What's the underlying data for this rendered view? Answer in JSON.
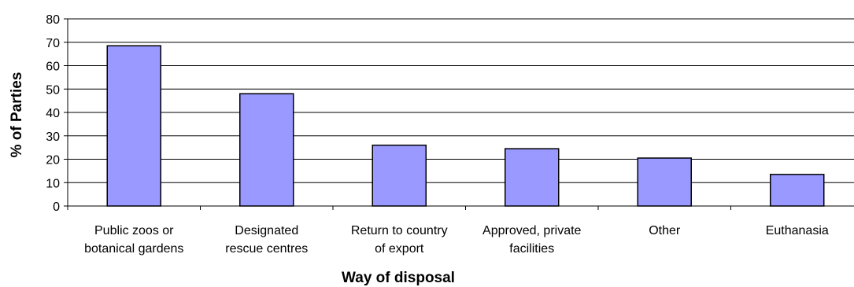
{
  "chart_data": {
    "type": "bar",
    "title": "",
    "xlabel": "Way of disposal",
    "ylabel": "% of Parties",
    "ylim": [
      0,
      80
    ],
    "yticks": [
      0,
      10,
      20,
      30,
      40,
      50,
      60,
      70,
      80
    ],
    "categories": [
      [
        "Public zoos or",
        "botanical gardens"
      ],
      [
        "Designated",
        "rescue centres"
      ],
      [
        "Return to country",
        "of export"
      ],
      [
        "Approved, private",
        "facilities"
      ],
      [
        "Other"
      ],
      [
        "Euthanasia"
      ]
    ],
    "values": [
      68.5,
      48,
      26,
      24.5,
      20.5,
      13.5
    ],
    "grid": true,
    "legend": "none",
    "bar_color": "#9999ff",
    "bar_edge_color": "#000000"
  }
}
